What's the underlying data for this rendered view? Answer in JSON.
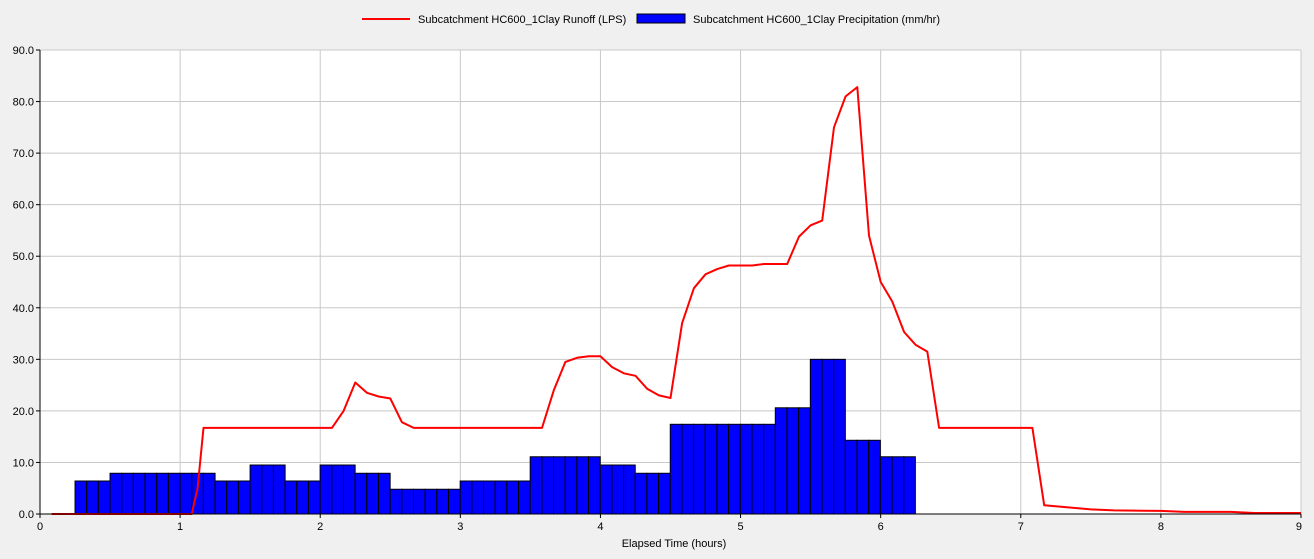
{
  "chart_data": {
    "type": "bar",
    "xlabel": "Elapsed Time (hours)",
    "ylabel": "",
    "xlim": [
      0,
      9
    ],
    "ylim": [
      0,
      90
    ],
    "x_ticks": [
      "0",
      "1",
      "2",
      "3",
      "4",
      "5",
      "6",
      "7",
      "8",
      "9"
    ],
    "y_ticks": [
      "0.0",
      "10.0",
      "20.0",
      "30.0",
      "40.0",
      "50.0",
      "60.0",
      "70.0",
      "80.0",
      "90.0"
    ],
    "grid": true,
    "legend_position": "top-center",
    "series": [
      {
        "name": "Subcatchment HC600_1Clay Runoff (LPS)",
        "kind": "line",
        "color": "#ff0000",
        "points": [
          [
            0.083,
            0
          ],
          [
            0.25,
            0
          ],
          [
            1.0,
            0
          ],
          [
            1.083,
            0
          ],
          [
            1.125,
            5
          ],
          [
            1.167,
            16.7
          ],
          [
            1.5,
            16.7
          ],
          [
            2.0,
            16.7
          ],
          [
            2.083,
            16.7
          ],
          [
            2.167,
            20.0
          ],
          [
            2.25,
            25.5
          ],
          [
            2.333,
            23.5
          ],
          [
            2.417,
            22.8
          ],
          [
            2.5,
            22.4
          ],
          [
            2.583,
            17.8
          ],
          [
            2.667,
            16.7
          ],
          [
            3.0,
            16.7
          ],
          [
            3.583,
            16.7
          ],
          [
            3.667,
            24.0
          ],
          [
            3.75,
            29.5
          ],
          [
            3.833,
            30.3
          ],
          [
            3.917,
            30.6
          ],
          [
            4.0,
            30.6
          ],
          [
            4.083,
            28.5
          ],
          [
            4.167,
            27.3
          ],
          [
            4.25,
            26.8
          ],
          [
            4.333,
            24.3
          ],
          [
            4.417,
            23.0
          ],
          [
            4.5,
            22.5
          ],
          [
            4.583,
            37.0
          ],
          [
            4.667,
            43.8
          ],
          [
            4.75,
            46.5
          ],
          [
            4.833,
            47.5
          ],
          [
            4.917,
            48.2
          ],
          [
            5.0,
            48.2
          ],
          [
            5.083,
            48.2
          ],
          [
            5.167,
            48.5
          ],
          [
            5.25,
            48.5
          ],
          [
            5.333,
            48.5
          ],
          [
            5.417,
            53.8
          ],
          [
            5.5,
            56.0
          ],
          [
            5.583,
            56.9
          ],
          [
            5.667,
            75.0
          ],
          [
            5.75,
            81.0
          ],
          [
            5.833,
            82.8
          ],
          [
            5.917,
            54.0
          ],
          [
            6.0,
            45.0
          ],
          [
            6.083,
            41.2
          ],
          [
            6.167,
            35.3
          ],
          [
            6.25,
            32.8
          ],
          [
            6.333,
            31.5
          ],
          [
            6.417,
            16.7
          ],
          [
            7.0,
            16.7
          ],
          [
            7.083,
            16.7
          ],
          [
            7.167,
            1.7
          ],
          [
            7.5,
            0.9
          ],
          [
            7.667,
            0.7
          ],
          [
            8.0,
            0.6
          ],
          [
            8.167,
            0.4
          ],
          [
            8.5,
            0.4
          ],
          [
            8.667,
            0.2
          ],
          [
            9.0,
            0.2
          ]
        ]
      },
      {
        "name": "Subcatchment HC600_1Clay Precipitation (mm/hr)",
        "kind": "bar",
        "color": "#0000ff",
        "bar_start": 0.25,
        "bar_width": 0.0833,
        "values": [
          6.4,
          6.4,
          6.4,
          7.9,
          7.9,
          7.9,
          7.9,
          7.9,
          7.9,
          7.9,
          7.9,
          7.9,
          6.4,
          6.4,
          6.4,
          9.5,
          9.5,
          9.5,
          6.4,
          6.4,
          6.4,
          9.5,
          9.5,
          9.5,
          7.9,
          7.9,
          7.9,
          4.8,
          4.8,
          4.8,
          4.8,
          4.8,
          4.8,
          6.4,
          6.4,
          6.4,
          6.4,
          6.4,
          6.4,
          11.1,
          11.1,
          11.1,
          11.1,
          11.1,
          11.1,
          9.5,
          9.5,
          9.5,
          7.9,
          7.9,
          7.9,
          17.4,
          17.4,
          17.4,
          17.4,
          17.4,
          17.4,
          17.4,
          17.4,
          17.4,
          20.6,
          20.6,
          20.6,
          30.0,
          30.0,
          30.0,
          14.3,
          14.3,
          14.3,
          11.1,
          11.1,
          11.1
        ]
      }
    ]
  }
}
